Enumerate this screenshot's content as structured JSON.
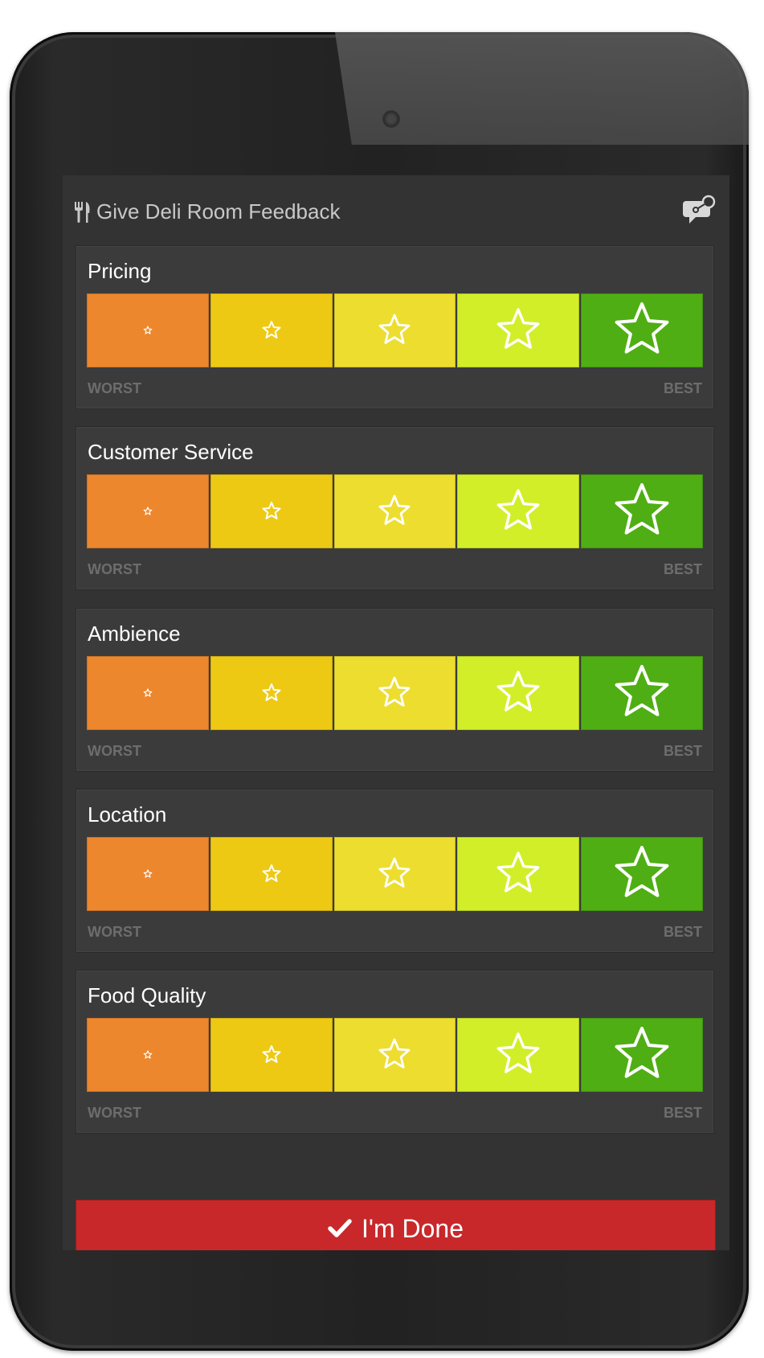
{
  "header": {
    "title": "Give Deli Room Feedback",
    "title_icon": "fork-knife-icon",
    "action_icon": "chat-bubble-icon"
  },
  "scale": {
    "worst_label": "WORST",
    "best_label": "BEST",
    "options": [
      {
        "color": "#ed872d",
        "icon": "star-outline-icon"
      },
      {
        "color": "#eec914",
        "icon": "star-outline-icon"
      },
      {
        "color": "#eddd2f",
        "icon": "star-outline-icon"
      },
      {
        "color": "#d2ee29",
        "icon": "star-outline-icon"
      },
      {
        "color": "#4fae13",
        "icon": "star-outline-icon"
      }
    ]
  },
  "questions": [
    {
      "title": "Pricing"
    },
    {
      "title": "Customer Service"
    },
    {
      "title": "Ambience"
    },
    {
      "title": "Location"
    },
    {
      "title": "Food Quality"
    }
  ],
  "done_button": {
    "label": "I'm Done",
    "icon": "check-icon",
    "color": "#c8282a"
  }
}
